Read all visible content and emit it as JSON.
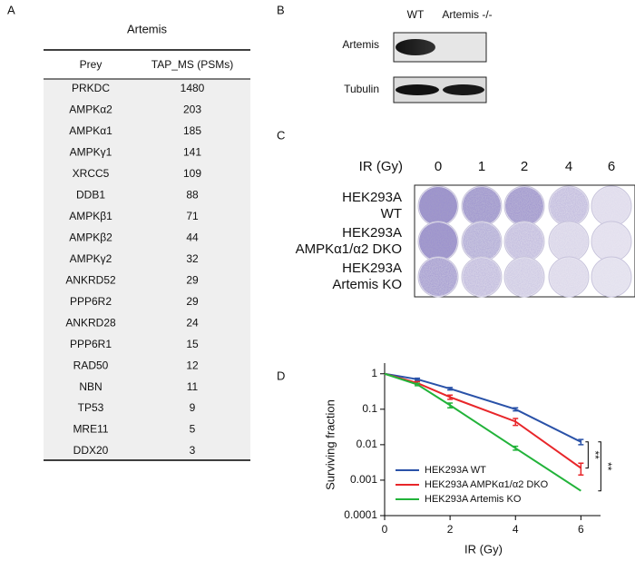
{
  "panel_a": {
    "label": "A",
    "title": "Artemis",
    "table": {
      "header": [
        "Prey",
        "TAP_MS (PSMs)"
      ],
      "rows": [
        [
          "PRKDC",
          1480
        ],
        [
          "AMPKα2",
          203
        ],
        [
          "AMPKα1",
          185
        ],
        [
          "AMPKγ1",
          141
        ],
        [
          "XRCC5",
          109
        ],
        [
          "DDB1",
          88
        ],
        [
          "AMPKβ1",
          71
        ],
        [
          "AMPKβ2",
          44
        ],
        [
          "AMPKγ2",
          32
        ],
        [
          "ANKRD52",
          29
        ],
        [
          "PPP6R2",
          29
        ],
        [
          "ANKRD28",
          24
        ],
        [
          "PPP6R1",
          15
        ],
        [
          "RAD50",
          12
        ],
        [
          "NBN",
          11
        ],
        [
          "TP53",
          9
        ],
        [
          "MRE11",
          5
        ],
        [
          "DDX20",
          3
        ]
      ]
    }
  },
  "panel_b": {
    "label": "B",
    "lanes": [
      "WT",
      "Artemis -/-"
    ],
    "rows": [
      "Artemis",
      "Tubulin"
    ]
  },
  "panel_c": {
    "label": "C",
    "axis_label": "IR (Gy)",
    "doses": [
      0,
      1,
      2,
      4,
      6
    ],
    "rows": [
      [
        "HEK293A",
        "WT"
      ],
      [
        "HEK293A",
        "AMPKα1/α2 DKO"
      ],
      [
        "HEK293A",
        "Artemis KO"
      ]
    ]
  },
  "chart_data": {
    "type": "line",
    "label": "D",
    "x_label": "IR (Gy)",
    "y_label": "Surviving fraction",
    "x": [
      0,
      1,
      2,
      4,
      6
    ],
    "xlim": [
      0,
      6.6
    ],
    "xticks": [
      0,
      2,
      4,
      6
    ],
    "ylim": [
      0.0001,
      2
    ],
    "yticks": [
      0.0001,
      0.001,
      0.01,
      0.1,
      1
    ],
    "log_y": true,
    "legend": "lower left",
    "series": [
      {
        "name": "HEK293A WT",
        "color": "#2a52a8",
        "values": [
          1,
          0.7,
          0.38,
          0.1,
          0.012
        ],
        "errors": [
          0,
          0.05,
          0.03,
          0.01,
          0.002
        ]
      },
      {
        "name": "HEK293A AMPKα1/α2 DKO",
        "color": "#e8262a",
        "values": [
          1,
          0.55,
          0.22,
          0.045,
          0.0022
        ],
        "errors": [
          0,
          0.05,
          0.03,
          0.01,
          0.0008
        ]
      },
      {
        "name": "HEK293A Artemis KO",
        "color": "#22b33a",
        "values": [
          1,
          0.5,
          0.13,
          0.008,
          0.0005
        ],
        "errors": [
          0,
          0.04,
          0.02,
          0.001,
          0
        ]
      }
    ],
    "annotations": [
      "**",
      "**"
    ]
  }
}
